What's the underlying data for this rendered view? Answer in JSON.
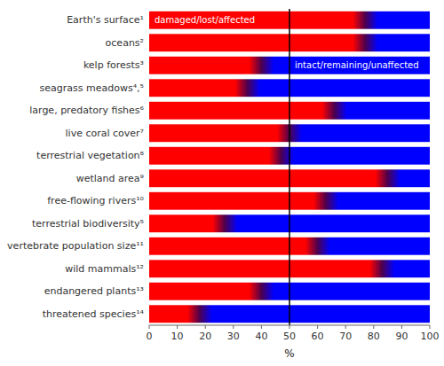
{
  "chart_data": {
    "type": "bar",
    "orientation": "horizontal",
    "categories": [
      "Earth's surface¹",
      "oceans²",
      "kelp forests³",
      "seagrass meadows⁴,⁵",
      "large, predatory fishes⁶",
      "live coral cover⁷",
      "terrestrial vegetation⁸",
      "wetland area⁹",
      "free-flowing rivers¹⁰",
      "terrestrial biodiversity⁵",
      "vertebrate population size¹¹",
      "wild mammals¹²",
      "endangered plants¹³",
      "threatened species¹⁴"
    ],
    "values": [
      77,
      77,
      40,
      35,
      66,
      50,
      47,
      85,
      63,
      27,
      60,
      83,
      40,
      18
    ],
    "x_label": "%",
    "xlim": [
      0,
      100
    ],
    "xticks": [
      0,
      10,
      20,
      30,
      40,
      50,
      60,
      70,
      80,
      90,
      100
    ],
    "reference_line": 50,
    "annotations": [
      {
        "text": "damaged/lost/affected",
        "color": "#ff0000"
      },
      {
        "text": "intact/remaining/unaffected",
        "color": "#0000ff"
      }
    ],
    "grid": false
  }
}
